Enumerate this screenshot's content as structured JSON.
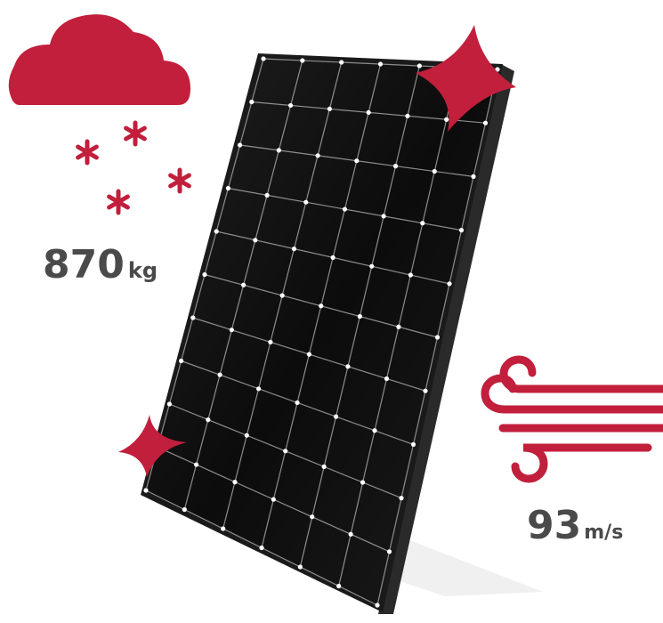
{
  "snow_load": {
    "value": "870",
    "unit": "kg"
  },
  "wind_load": {
    "value": "93",
    "unit": "m/s"
  },
  "colors": {
    "accent": "#c11f3c",
    "panel": "#0b0b0b",
    "frame": "#1c1c1c",
    "text": "#4a4a4a"
  },
  "icons": [
    "snow-cloud-icon",
    "wind-icon",
    "sparkle-icon"
  ]
}
